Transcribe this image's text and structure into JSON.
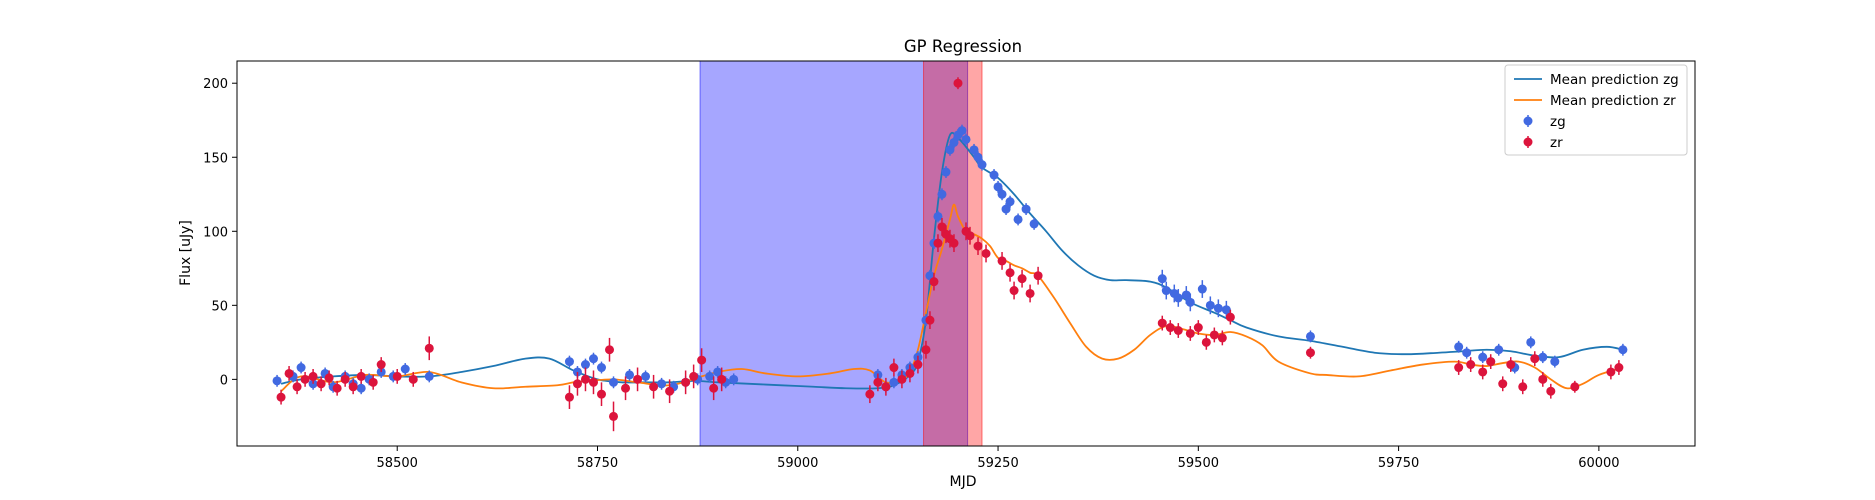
{
  "chart_data": {
    "type": "line",
    "title": "GP Regression",
    "xlabel": "MJD",
    "ylabel": "Flux [uJy]",
    "xlim": [
      58300,
      60120
    ],
    "ylim": [
      -45,
      215
    ],
    "xticks": [
      58500,
      58750,
      59000,
      59250,
      59500,
      59750,
      60000
    ],
    "yticks": [
      0,
      50,
      100,
      150,
      200
    ],
    "grid": false,
    "legend_position": "top-right",
    "spans": [
      {
        "x0": 58878,
        "x1": 59212,
        "color": "#0000ff",
        "opacity": 0.35
      },
      {
        "x0": 59157,
        "x1": 59230,
        "color": "#ff0000",
        "opacity": 0.35
      }
    ],
    "series": [
      {
        "name": "Mean prediction zg",
        "kind": "line",
        "color": "#1f77b4",
        "x": [
          58355,
          58380,
          58420,
          58460,
          58500,
          58540,
          58580,
          58620,
          58660,
          58690,
          58720,
          58750,
          58780,
          58810,
          58840,
          58870,
          58900,
          58940,
          58980,
          59020,
          59060,
          59100,
          59120,
          59140,
          59150,
          59160,
          59170,
          59180,
          59190,
          59200,
          59210,
          59220,
          59230,
          59250,
          59270,
          59290,
          59310,
          59330,
          59350,
          59370,
          59390,
          59410,
          59440,
          59460,
          59490,
          59520,
          59540,
          59560,
          59600,
          59640,
          59680,
          59720,
          59760,
          59800,
          59830,
          59860,
          59890,
          59920,
          59950,
          59980,
          60010,
          60030
        ],
        "y": [
          -3,
          0,
          2,
          3,
          2,
          2,
          5,
          9,
          14,
          14,
          6,
          0,
          -2,
          -2,
          -2,
          -1,
          -2,
          -3,
          -4,
          -5,
          -6,
          -6,
          -4,
          3,
          12,
          40,
          95,
          140,
          165,
          163,
          157,
          150,
          143,
          136,
          125,
          112,
          100,
          87,
          77,
          70,
          67,
          67,
          66,
          62,
          52,
          45,
          40,
          35,
          29,
          26,
          22,
          18,
          17,
          18,
          19,
          20,
          19,
          16,
          15,
          20,
          22,
          20
        ]
      },
      {
        "name": "Mean prediction zr",
        "kind": "line",
        "color": "#ff7f0e",
        "x": [
          58355,
          58380,
          58420,
          58460,
          58500,
          58540,
          58580,
          58620,
          58660,
          58700,
          58720,
          58740,
          58770,
          58800,
          58840,
          58880,
          58900,
          58930,
          58960,
          59000,
          59040,
          59070,
          59090,
          59110,
          59130,
          59140,
          59150,
          59160,
          59170,
          59180,
          59190,
          59195,
          59200,
          59210,
          59220,
          59230,
          59240,
          59250,
          59260,
          59270,
          59280,
          59290,
          59300,
          59320,
          59340,
          59360,
          59380,
          59400,
          59420,
          59440,
          59460,
          59480,
          59500,
          59520,
          59540,
          59560,
          59580,
          59600,
          59640,
          59660,
          59700,
          59740,
          59780,
          59820,
          59840,
          59860,
          59880,
          59900,
          59920,
          59940,
          59960,
          59980,
          60000,
          60030
        ],
        "y": [
          -8,
          2,
          -2,
          3,
          2,
          5,
          -2,
          -6,
          -5,
          -4,
          -2,
          -1,
          0,
          -2,
          -4,
          2,
          5,
          7,
          4,
          2,
          4,
          7,
          6,
          -2,
          0,
          5,
          20,
          45,
          70,
          88,
          108,
          118,
          110,
          100,
          98,
          95,
          90,
          82,
          80,
          77,
          75,
          72,
          70,
          55,
          38,
          22,
          14,
          14,
          20,
          30,
          36,
          34,
          31,
          30,
          32,
          29,
          23,
          12,
          4,
          3,
          2,
          6,
          10,
          12,
          10,
          9,
          11,
          12,
          8,
          0,
          -6,
          -3,
          3,
          8
        ]
      },
      {
        "name": "zg",
        "kind": "scatter",
        "color": "#4169e1",
        "x": [
          58350,
          58370,
          58380,
          58395,
          58410,
          58420,
          58435,
          58445,
          58455,
          58465,
          58480,
          58495,
          58510,
          58540,
          58715,
          58725,
          58735,
          58745,
          58755,
          58770,
          58790,
          58810,
          58830,
          58845,
          58860,
          58875,
          58890,
          58900,
          58910,
          58920,
          59100,
          59110,
          59120,
          59130,
          59140,
          59150,
          59160,
          59165,
          59170,
          59175,
          59180,
          59185,
          59190,
          59195,
          59200,
          59205,
          59210,
          59220,
          59225,
          59230,
          59245,
          59250,
          59255,
          59260,
          59265,
          59275,
          59285,
          59295,
          59455,
          59460,
          59470,
          59475,
          59485,
          59490,
          59505,
          59515,
          59525,
          59535,
          59640,
          59825,
          59835,
          59855,
          59865,
          59875,
          59895,
          59915,
          59930,
          59945,
          60030
        ],
        "y": [
          -1,
          2,
          8,
          -3,
          4,
          -5,
          2,
          -3,
          -6,
          0,
          5,
          2,
          7,
          2,
          12,
          5,
          10,
          14,
          8,
          -2,
          3,
          2,
          -3,
          -5,
          -2,
          0,
          2,
          5,
          -2,
          0,
          3,
          -5,
          -2,
          3,
          8,
          15,
          40,
          70,
          92,
          110,
          125,
          140,
          155,
          160,
          165,
          168,
          162,
          155,
          150,
          145,
          138,
          130,
          125,
          115,
          120,
          108,
          115,
          105,
          68,
          60,
          58,
          55,
          57,
          52,
          61,
          50,
          48,
          47,
          29,
          22,
          18,
          15,
          12,
          20,
          8,
          25,
          15,
          12,
          20
        ],
        "err": [
          4,
          4,
          4,
          4,
          4,
          4,
          4,
          4,
          4,
          4,
          4,
          4,
          4,
          4,
          4,
          4,
          4,
          4,
          4,
          4,
          4,
          4,
          4,
          4,
          4,
          4,
          4,
          4,
          4,
          4,
          4,
          4,
          4,
          4,
          4,
          4,
          4,
          4,
          4,
          4,
          4,
          4,
          4,
          4,
          4,
          4,
          4,
          4,
          4,
          4,
          4,
          4,
          4,
          4,
          4,
          4,
          4,
          4,
          6,
          6,
          6,
          6,
          6,
          6,
          6,
          6,
          6,
          6,
          4,
          4,
          4,
          4,
          4,
          4,
          4,
          4,
          4,
          4,
          4
        ]
      },
      {
        "name": "zr",
        "kind": "scatter",
        "color": "#dc143c",
        "x": [
          58355,
          58365,
          58375,
          58385,
          58395,
          58405,
          58415,
          58425,
          58435,
          58445,
          58455,
          58470,
          58480,
          58500,
          58520,
          58540,
          58715,
          58725,
          58735,
          58745,
          58755,
          58765,
          58770,
          58785,
          58800,
          58820,
          58840,
          58860,
          58870,
          58880,
          58895,
          58905,
          59090,
          59100,
          59110,
          59120,
          59130,
          59140,
          59150,
          59160,
          59165,
          59170,
          59175,
          59180,
          59185,
          59190,
          59195,
          59200,
          59210,
          59215,
          59225,
          59235,
          59255,
          59265,
          59270,
          59280,
          59290,
          59300,
          59455,
          59465,
          59475,
          59490,
          59500,
          59510,
          59520,
          59530,
          59540,
          59640,
          59825,
          59840,
          59855,
          59865,
          59880,
          59890,
          59905,
          59920,
          59930,
          59940,
          59970,
          60015,
          60025
        ],
        "y": [
          -12,
          4,
          -5,
          0,
          2,
          -3,
          1,
          -6,
          0,
          -5,
          2,
          -2,
          10,
          2,
          0,
          21,
          -12,
          -3,
          0,
          -2,
          -10,
          20,
          -25,
          -6,
          0,
          -5,
          -8,
          -2,
          2,
          13,
          -6,
          0,
          -10,
          -2,
          -5,
          8,
          0,
          4,
          10,
          20,
          40,
          66,
          92,
          103,
          98,
          95,
          92,
          200,
          100,
          97,
          90,
          85,
          80,
          72,
          60,
          68,
          58,
          70,
          38,
          35,
          33,
          31,
          35,
          25,
          30,
          28,
          42,
          18,
          8,
          10,
          5,
          12,
          -3,
          10,
          -5,
          14,
          0,
          -8,
          -5,
          5,
          8
        ],
        "err": [
          5,
          5,
          5,
          5,
          5,
          5,
          5,
          5,
          5,
          5,
          5,
          5,
          5,
          5,
          5,
          8,
          8,
          8,
          8,
          8,
          8,
          8,
          10,
          8,
          8,
          8,
          8,
          8,
          8,
          8,
          8,
          8,
          6,
          6,
          6,
          6,
          6,
          6,
          6,
          6,
          6,
          6,
          6,
          6,
          6,
          6,
          6,
          4,
          6,
          6,
          6,
          6,
          6,
          6,
          6,
          6,
          6,
          6,
          5,
          5,
          5,
          5,
          5,
          5,
          5,
          5,
          5,
          4,
          5,
          5,
          5,
          5,
          5,
          5,
          5,
          5,
          5,
          5,
          4,
          5,
          5
        ]
      }
    ]
  }
}
